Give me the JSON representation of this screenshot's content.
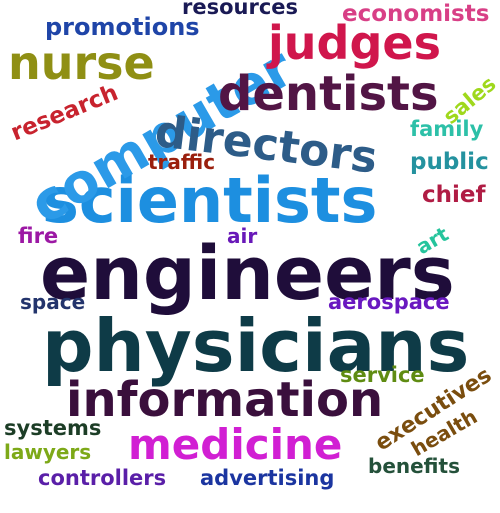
{
  "words": [
    {
      "text": "engineers",
      "color": "#1f0d3a"
    },
    {
      "text": "physicians",
      "color": "#0e3b47"
    },
    {
      "text": "scientists",
      "color": "#1d8fe0"
    },
    {
      "text": "information",
      "color": "#3a0f3c"
    },
    {
      "text": "medicine",
      "color": "#d11fd3"
    },
    {
      "text": "computer",
      "color": "#2b9ae8"
    },
    {
      "text": "directors",
      "color": "#2d5c88"
    },
    {
      "text": "dentists",
      "color": "#521545"
    },
    {
      "text": "judges",
      "color": "#d0164c"
    },
    {
      "text": "nurse",
      "color": "#8f8f14"
    },
    {
      "text": "promotions",
      "color": "#1f45a8"
    },
    {
      "text": "resources",
      "color": "#1a1a55"
    },
    {
      "text": "economists",
      "color": "#d83f86"
    },
    {
      "text": "research",
      "color": "#c8232e"
    },
    {
      "text": "sales",
      "color": "#9fd81c"
    },
    {
      "text": "family",
      "color": "#2dc0a8"
    },
    {
      "text": "public",
      "color": "#24929f"
    },
    {
      "text": "chief",
      "color": "#b01c44"
    },
    {
      "text": "traffic",
      "color": "#9a1f0d"
    },
    {
      "text": "art",
      "color": "#25c49c"
    },
    {
      "text": "fire",
      "color": "#9c18a4"
    },
    {
      "text": "air",
      "color": "#6818b8"
    },
    {
      "text": "space",
      "color": "#23346c"
    },
    {
      "text": "aerospace",
      "color": "#6918c0"
    },
    {
      "text": "service",
      "color": "#5f8c12"
    },
    {
      "text": "executives",
      "color": "#7a4d0e"
    },
    {
      "text": "health",
      "color": "#7a4d0e"
    },
    {
      "text": "systems",
      "color": "#1c3d26"
    },
    {
      "text": "lawyers",
      "color": "#7da918"
    },
    {
      "text": "benefits",
      "color": "#24513a"
    },
    {
      "text": "controllers",
      "color": "#5a1fa8"
    },
    {
      "text": "advertising",
      "color": "#1b35a0"
    }
  ]
}
